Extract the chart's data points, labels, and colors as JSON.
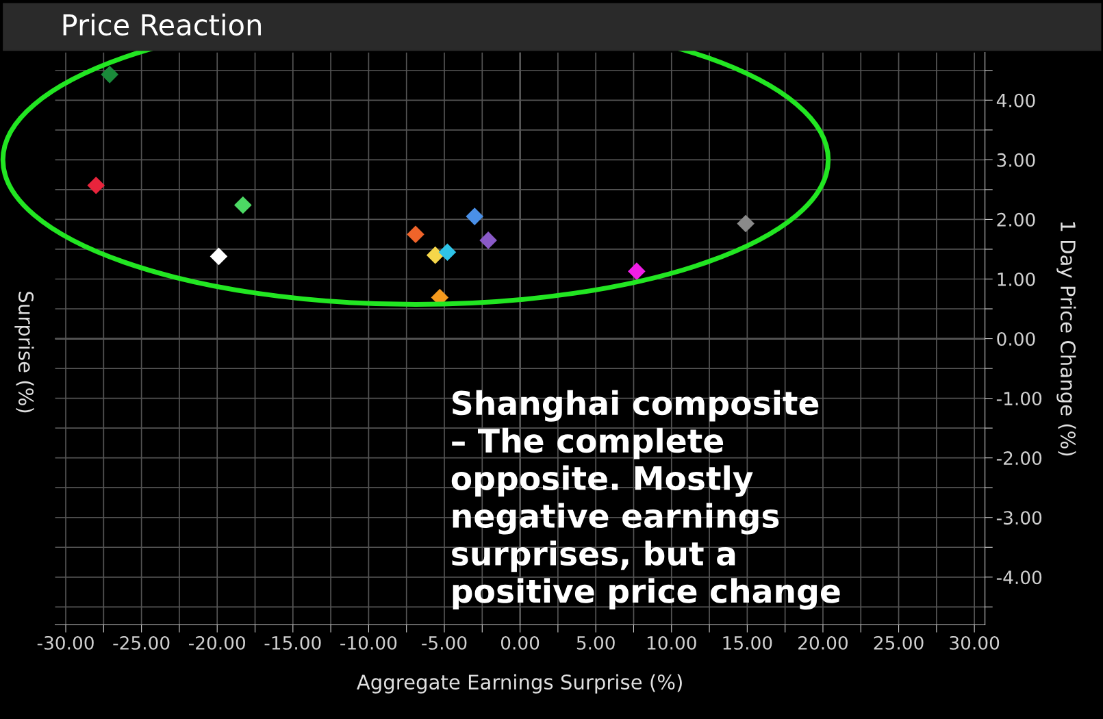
{
  "chart_data": {
    "type": "scatter",
    "title": "Price Reaction",
    "xlabel": "Aggregate Earnings Surprise (%)",
    "ylabel": "1 Day Price Change (%)",
    "annotations": [
      "Shanghai composite – The complete opposite. Mostly negative earnings surprises, but a positive price change",
      "Surprise (%)"
    ],
    "x": [
      -27.1,
      -28.0,
      -18.3,
      -19.9,
      -6.9,
      -5.6,
      -4.8,
      -5.3,
      -3.0,
      -2.1,
      7.7,
      14.9
    ],
    "values": [
      4.43,
      2.57,
      2.24,
      1.38,
      1.75,
      1.4,
      1.45,
      0.69,
      2.05,
      1.65,
      1.13,
      1.93
    ],
    "colors": [
      "#1a8a3a",
      "#e8243c",
      "#4cd964",
      "#ffffff",
      "#f0642a",
      "#f5d64a",
      "#2ec4e8",
      "#f59a1e",
      "#4a90e8",
      "#8a5ac8",
      "#f01ee6",
      "#8a8a8a"
    ],
    "marker": "diamond",
    "grid": true,
    "xlim": [
      -30.7,
      30.7
    ],
    "ylim": [
      -4.8,
      4.8
    ],
    "xticks": [
      {
        "value": -30,
        "label": "-30.00"
      },
      {
        "value": -27.5,
        "label": null
      },
      {
        "value": -25,
        "label": "-25.00"
      },
      {
        "value": -22.5,
        "label": null
      },
      {
        "value": -20,
        "label": "-20.00"
      },
      {
        "value": -17.5,
        "label": null
      },
      {
        "value": -15,
        "label": "-15.00"
      },
      {
        "value": -12.5,
        "label": null
      },
      {
        "value": -10,
        "label": "-10.00"
      },
      {
        "value": -7.5,
        "label": null
      },
      {
        "value": -5,
        "label": "-5.00"
      },
      {
        "value": -2.5,
        "label": null
      },
      {
        "value": 0,
        "label": "0.00"
      },
      {
        "value": 2.5,
        "label": null
      },
      {
        "value": 5,
        "label": "5.00"
      },
      {
        "value": 7.5,
        "label": null
      },
      {
        "value": 10,
        "label": "10.00"
      },
      {
        "value": 12.5,
        "label": null
      },
      {
        "value": 15,
        "label": "15.00"
      },
      {
        "value": 17.5,
        "label": null
      },
      {
        "value": 20,
        "label": "20.00"
      },
      {
        "value": 22.5,
        "label": null
      },
      {
        "value": 25,
        "label": "25.00"
      },
      {
        "value": 27.5,
        "label": null
      },
      {
        "value": 30,
        "label": "30.00"
      }
    ],
    "yticks": [
      {
        "value": -4.5,
        "label": null
      },
      {
        "value": -4,
        "label": "-4.00"
      },
      {
        "value": -3.5,
        "label": null
      },
      {
        "value": -3,
        "label": "-3.00"
      },
      {
        "value": -2.5,
        "label": null
      },
      {
        "value": -2,
        "label": "-2.00"
      },
      {
        "value": -1.5,
        "label": null
      },
      {
        "value": -1,
        "label": "-1.00"
      },
      {
        "value": -0.5,
        "label": null
      },
      {
        "value": 0,
        "label": "0.00"
      },
      {
        "value": 0.5,
        "label": null
      },
      {
        "value": 1,
        "label": "1.00"
      },
      {
        "value": 1.5,
        "label": null
      },
      {
        "value": 2,
        "label": "2.00"
      },
      {
        "value": 2.5,
        "label": null
      },
      {
        "value": 3,
        "label": "3.00"
      },
      {
        "value": 3.5,
        "label": null
      },
      {
        "value": 4,
        "label": "4.00"
      },
      {
        "value": 4.5,
        "label": null
      }
    ]
  }
}
